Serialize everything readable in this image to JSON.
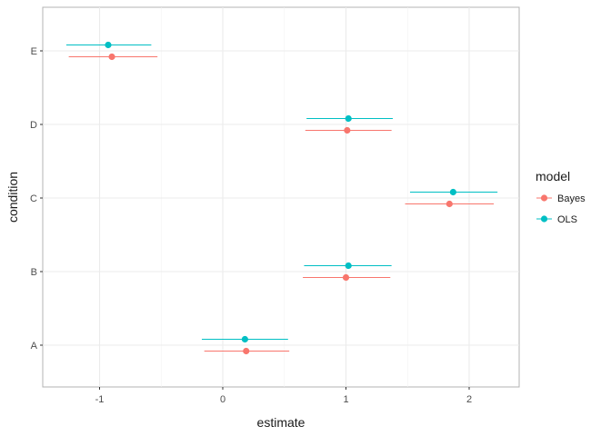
{
  "chart_data": {
    "type": "point-range",
    "xlabel": "estimate",
    "ylabel": "condition",
    "xlim": [
      -1.5,
      2.42
    ],
    "x_ticks": [
      -1,
      0,
      1,
      2
    ],
    "x_tick_labels": [
      "-1",
      "0",
      "1",
      "2"
    ],
    "categories": [
      "A",
      "B",
      "C",
      "D",
      "E"
    ],
    "grid": true,
    "legend": {
      "title": "model",
      "position": "right"
    },
    "series": [
      {
        "name": "Bayes",
        "color": "#F8766D",
        "points": [
          {
            "condition": "A",
            "estimate": 0.19,
            "lower": -0.15,
            "upper": 0.54
          },
          {
            "condition": "B",
            "estimate": 1.0,
            "lower": 0.65,
            "upper": 1.36
          },
          {
            "condition": "C",
            "estimate": 1.84,
            "lower": 1.48,
            "upper": 2.2
          },
          {
            "condition": "D",
            "estimate": 1.01,
            "lower": 0.67,
            "upper": 1.37
          },
          {
            "condition": "E",
            "estimate": -0.9,
            "lower": -1.25,
            "upper": -0.53
          }
        ]
      },
      {
        "name": "OLS",
        "color": "#00BFC4",
        "points": [
          {
            "condition": "A",
            "estimate": 0.18,
            "lower": -0.17,
            "upper": 0.53
          },
          {
            "condition": "B",
            "estimate": 1.02,
            "lower": 0.66,
            "upper": 1.37
          },
          {
            "condition": "C",
            "estimate": 1.87,
            "lower": 1.52,
            "upper": 2.23
          },
          {
            "condition": "D",
            "estimate": 1.02,
            "lower": 0.68,
            "upper": 1.38
          },
          {
            "condition": "E",
            "estimate": -0.93,
            "lower": -1.27,
            "upper": -0.58
          }
        ]
      }
    ]
  }
}
